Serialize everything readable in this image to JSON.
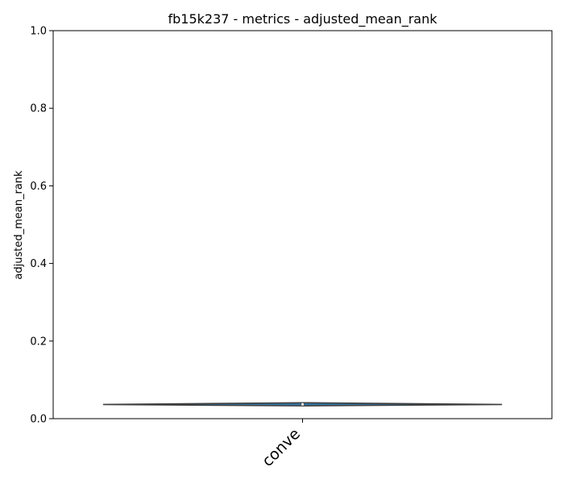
{
  "chart_data": {
    "type": "violin",
    "title": "fb15k237 - metrics - adjusted_mean_rank",
    "xlabel": "",
    "ylabel": "adjusted_mean_rank",
    "ylim": [
      0,
      1.0
    ],
    "yticks": [
      "0.0",
      "0.2",
      "0.4",
      "0.6",
      "0.8",
      "1.0"
    ],
    "categories": [
      "conve"
    ],
    "violins": [
      {
        "category": "conve",
        "min": 0.033,
        "q1": 0.034,
        "median": 0.037,
        "q3": 0.039,
        "max": 0.041,
        "color": "#3274a1"
      }
    ],
    "grid": false,
    "legend": "none"
  }
}
